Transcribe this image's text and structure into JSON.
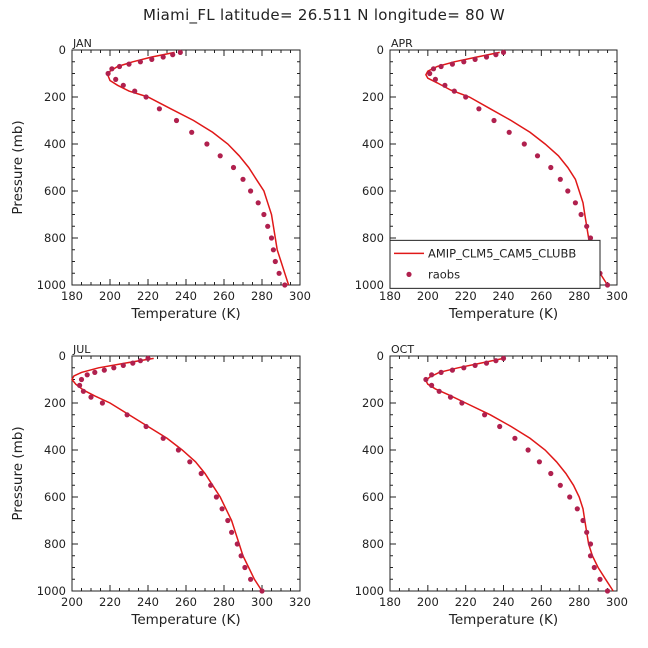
{
  "figure": {
    "title": "Miami_FL   latitude= 26.511 N longitude= 80 W",
    "legend": {
      "line_label": "AMIP_CLM5_CAM5_CLUBB",
      "marker_label": "raobs",
      "line_color": "#e01818",
      "marker_color": "#b0204e"
    }
  },
  "chart_data": [
    {
      "type": "line",
      "panel_label": "JAN",
      "xlabel": "Temperature (K)",
      "ylabel": "Pressure (mb)",
      "xlim": [
        180,
        300
      ],
      "ylim": [
        1000,
        0
      ],
      "xticks": [
        180,
        200,
        220,
        240,
        260,
        280,
        300
      ],
      "yticks": [
        0,
        200,
        400,
        600,
        800,
        1000
      ],
      "show_legend": false,
      "series": [
        {
          "name": "AMIP_CLM5_CAM5_CLUBB",
          "style": "line",
          "points": [
            [
              234,
              10
            ],
            [
              222,
              30
            ],
            [
              212,
              50
            ],
            [
              204,
              70
            ],
            [
              200,
              90
            ],
            [
              199,
              110
            ],
            [
              200,
              130
            ],
            [
              204,
              150
            ],
            [
              210,
              175
            ],
            [
              220,
              200
            ],
            [
              232,
              250
            ],
            [
              244,
              300
            ],
            [
              254,
              350
            ],
            [
              262,
              400
            ],
            [
              268,
              450
            ],
            [
              273,
              500
            ],
            [
              277,
              550
            ],
            [
              281,
              600
            ],
            [
              283,
              650
            ],
            [
              285,
              700
            ],
            [
              286,
              750
            ],
            [
              287,
              800
            ],
            [
              288,
              850
            ],
            [
              290,
              900
            ],
            [
              292,
              950
            ],
            [
              294,
              1000
            ]
          ]
        },
        {
          "name": "raobs",
          "style": "marker",
          "points": [
            [
              237,
              10
            ],
            [
              233,
              20
            ],
            [
              228,
              30
            ],
            [
              222,
              40
            ],
            [
              216,
              50
            ],
            [
              210,
              60
            ],
            [
              205,
              70
            ],
            [
              201,
              80
            ],
            [
              199,
              100
            ],
            [
              203,
              125
            ],
            [
              207,
              150
            ],
            [
              213,
              175
            ],
            [
              219,
              200
            ],
            [
              226,
              250
            ],
            [
              235,
              300
            ],
            [
              243,
              350
            ],
            [
              251,
              400
            ],
            [
              258,
              450
            ],
            [
              265,
              500
            ],
            [
              270,
              550
            ],
            [
              274,
              600
            ],
            [
              278,
              650
            ],
            [
              281,
              700
            ],
            [
              283,
              750
            ],
            [
              285,
              800
            ],
            [
              286,
              850
            ],
            [
              287,
              900
            ],
            [
              289,
              950
            ],
            [
              292,
              1000
            ]
          ]
        }
      ]
    },
    {
      "type": "line",
      "panel_label": "APR",
      "xlabel": "Temperature (K)",
      "ylabel": "",
      "xlim": [
        180,
        300
      ],
      "ylim": [
        1000,
        0
      ],
      "xticks": [
        180,
        200,
        220,
        240,
        260,
        280,
        300
      ],
      "yticks": [
        0,
        200,
        400,
        600,
        800,
        1000
      ],
      "show_legend": true,
      "series": [
        {
          "name": "AMIP_CLM5_CAM5_CLUBB",
          "style": "line",
          "points": [
            [
              238,
              10
            ],
            [
              226,
              30
            ],
            [
              214,
              50
            ],
            [
              205,
              70
            ],
            [
              200,
              90
            ],
            [
              199,
              105
            ],
            [
              200,
              120
            ],
            [
              205,
              140
            ],
            [
              212,
              170
            ],
            [
              222,
              200
            ],
            [
              233,
              250
            ],
            [
              244,
              300
            ],
            [
              254,
              350
            ],
            [
              262,
              400
            ],
            [
              269,
              450
            ],
            [
              274,
              500
            ],
            [
              278,
              550
            ],
            [
              280,
              600
            ],
            [
              282,
              650
            ],
            [
              283,
              700
            ],
            [
              284,
              750
            ],
            [
              285,
              800
            ],
            [
              286,
              850
            ],
            [
              288,
              900
            ],
            [
              291,
              950
            ],
            [
              295,
              1000
            ]
          ]
        },
        {
          "name": "raobs",
          "style": "marker",
          "points": [
            [
              240,
              10
            ],
            [
              236,
              20
            ],
            [
              231,
              30
            ],
            [
              225,
              40
            ],
            [
              219,
              50
            ],
            [
              213,
              60
            ],
            [
              207,
              70
            ],
            [
              203,
              80
            ],
            [
              201,
              100
            ],
            [
              204,
              125
            ],
            [
              209,
              150
            ],
            [
              214,
              175
            ],
            [
              220,
              200
            ],
            [
              227,
              250
            ],
            [
              235,
              300
            ],
            [
              243,
              350
            ],
            [
              251,
              400
            ],
            [
              258,
              450
            ],
            [
              265,
              500
            ],
            [
              270,
              550
            ],
            [
              274,
              600
            ],
            [
              278,
              650
            ],
            [
              281,
              700
            ],
            [
              284,
              750
            ],
            [
              286,
              800
            ],
            [
              287,
              850
            ],
            [
              289,
              900
            ],
            [
              291,
              950
            ],
            [
              295,
              1000
            ]
          ]
        }
      ]
    },
    {
      "type": "line",
      "panel_label": "JUL",
      "xlabel": "Temperature (K)",
      "ylabel": "Pressure (mb)",
      "xlim": [
        200,
        320
      ],
      "ylim": [
        1000,
        0
      ],
      "xticks": [
        200,
        220,
        240,
        260,
        280,
        300,
        320
      ],
      "yticks": [
        0,
        200,
        400,
        600,
        800,
        1000
      ],
      "show_legend": false,
      "series": [
        {
          "name": "AMIP_CLM5_CAM5_CLUBB",
          "style": "line",
          "points": [
            [
              243,
              10
            ],
            [
              228,
              30
            ],
            [
              214,
              50
            ],
            [
              205,
              70
            ],
            [
              201,
              85
            ],
            [
              200,
              100
            ],
            [
              202,
              120
            ],
            [
              206,
              145
            ],
            [
              212,
              170
            ],
            [
              220,
              200
            ],
            [
              230,
              250
            ],
            [
              240,
              300
            ],
            [
              250,
              350
            ],
            [
              258,
              400
            ],
            [
              265,
              450
            ],
            [
              270,
              500
            ],
            [
              274,
              550
            ],
            [
              278,
              600
            ],
            [
              281,
              650
            ],
            [
              284,
              700
            ],
            [
              286,
              750
            ],
            [
              288,
              800
            ],
            [
              290,
              850
            ],
            [
              293,
              900
            ],
            [
              296,
              950
            ],
            [
              300,
              1000
            ]
          ]
        },
        {
          "name": "raobs",
          "style": "marker",
          "points": [
            [
              240,
              10
            ],
            [
              236,
              20
            ],
            [
              232,
              30
            ],
            [
              227,
              40
            ],
            [
              222,
              50
            ],
            [
              217,
              60
            ],
            [
              212,
              70
            ],
            [
              208,
              80
            ],
            [
              205,
              100
            ],
            [
              204,
              125
            ],
            [
              206,
              150
            ],
            [
              210,
              175
            ],
            [
              216,
              200
            ],
            [
              229,
              250
            ],
            [
              239,
              300
            ],
            [
              248,
              350
            ],
            [
              256,
              400
            ],
            [
              262,
              450
            ],
            [
              268,
              500
            ],
            [
              273,
              550
            ],
            [
              276,
              600
            ],
            [
              279,
              650
            ],
            [
              282,
              700
            ],
            [
              284,
              750
            ],
            [
              287,
              800
            ],
            [
              289,
              850
            ],
            [
              291,
              900
            ],
            [
              294,
              950
            ],
            [
              300,
              1000
            ]
          ]
        }
      ]
    },
    {
      "type": "line",
      "panel_label": "OCT",
      "xlabel": "Temperature (K)",
      "ylabel": "",
      "xlim": [
        180,
        300
      ],
      "ylim": [
        1000,
        0
      ],
      "xticks": [
        180,
        200,
        220,
        240,
        260,
        280,
        300
      ],
      "yticks": [
        0,
        200,
        400,
        600,
        800,
        1000
      ],
      "show_legend": false,
      "series": [
        {
          "name": "AMIP_CLM5_CAM5_CLUBB",
          "style": "line",
          "points": [
            [
              240,
              10
            ],
            [
              228,
              30
            ],
            [
              216,
              50
            ],
            [
              206,
              70
            ],
            [
              201,
              90
            ],
            [
              199,
              105
            ],
            [
              200,
              120
            ],
            [
              204,
              140
            ],
            [
              211,
              165
            ],
            [
              220,
              200
            ],
            [
              233,
              250
            ],
            [
              244,
              300
            ],
            [
              254,
              350
            ],
            [
              262,
              400
            ],
            [
              268,
              450
            ],
            [
              273,
              500
            ],
            [
              277,
              550
            ],
            [
              280,
              600
            ],
            [
              282,
              650
            ],
            [
              283,
              700
            ],
            [
              284,
              750
            ],
            [
              285,
              800
            ],
            [
              287,
              850
            ],
            [
              290,
              900
            ],
            [
              294,
              950
            ],
            [
              298,
              1000
            ]
          ]
        },
        {
          "name": "raobs",
          "style": "marker",
          "points": [
            [
              240,
              10
            ],
            [
              236,
              20
            ],
            [
              231,
              30
            ],
            [
              225,
              40
            ],
            [
              219,
              50
            ],
            [
              213,
              60
            ],
            [
              207,
              70
            ],
            [
              202,
              80
            ],
            [
              199,
              100
            ],
            [
              202,
              125
            ],
            [
              206,
              150
            ],
            [
              212,
              175
            ],
            [
              218,
              200
            ],
            [
              230,
              250
            ],
            [
              238,
              300
            ],
            [
              246,
              350
            ],
            [
              253,
              400
            ],
            [
              259,
              450
            ],
            [
              265,
              500
            ],
            [
              270,
              550
            ],
            [
              275,
              600
            ],
            [
              279,
              650
            ],
            [
              282,
              700
            ],
            [
              284,
              750
            ],
            [
              286,
              800
            ],
            [
              286,
              850
            ],
            [
              288,
              900
            ],
            [
              291,
              950
            ],
            [
              295,
              1000
            ]
          ]
        }
      ]
    }
  ]
}
